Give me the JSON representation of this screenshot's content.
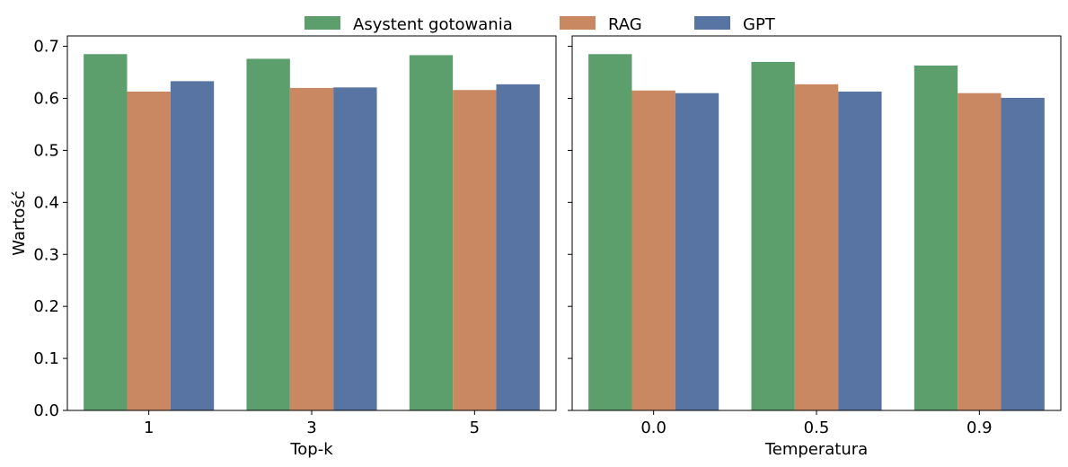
{
  "legend": {
    "placement": "top-center",
    "items": [
      {
        "label": "Asystent gotowania",
        "color": "#5d9e6d"
      },
      {
        "label": "RAG",
        "color": "#ca8862"
      },
      {
        "label": "GPT",
        "color": "#5874a3"
      }
    ]
  },
  "chart_data": [
    {
      "type": "bar",
      "xlabel": "Top-k",
      "ylabel": "Wartość",
      "ylim": [
        0,
        0.72
      ],
      "yticks": [
        "0.0",
        "0.1",
        "0.2",
        "0.3",
        "0.4",
        "0.5",
        "0.6",
        "0.7"
      ],
      "categories": [
        "1",
        "3",
        "5"
      ],
      "grid": false,
      "series": [
        {
          "name": "Asystent gotowania",
          "values": [
            0.685,
            0.676,
            0.683
          ]
        },
        {
          "name": "RAG",
          "values": [
            0.613,
            0.62,
            0.616
          ]
        },
        {
          "name": "GPT",
          "values": [
            0.633,
            0.621,
            0.627
          ]
        }
      ]
    },
    {
      "type": "bar",
      "xlabel": "Temperatura",
      "ylabel": "",
      "ylim": [
        0,
        0.72
      ],
      "categories": [
        "0.0",
        "0.5",
        "0.9"
      ],
      "grid": false,
      "series": [
        {
          "name": "Asystent gotowania",
          "values": [
            0.685,
            0.67,
            0.663
          ]
        },
        {
          "name": "RAG",
          "values": [
            0.615,
            0.627,
            0.61
          ]
        },
        {
          "name": "GPT",
          "values": [
            0.61,
            0.613,
            0.601
          ]
        }
      ]
    }
  ]
}
